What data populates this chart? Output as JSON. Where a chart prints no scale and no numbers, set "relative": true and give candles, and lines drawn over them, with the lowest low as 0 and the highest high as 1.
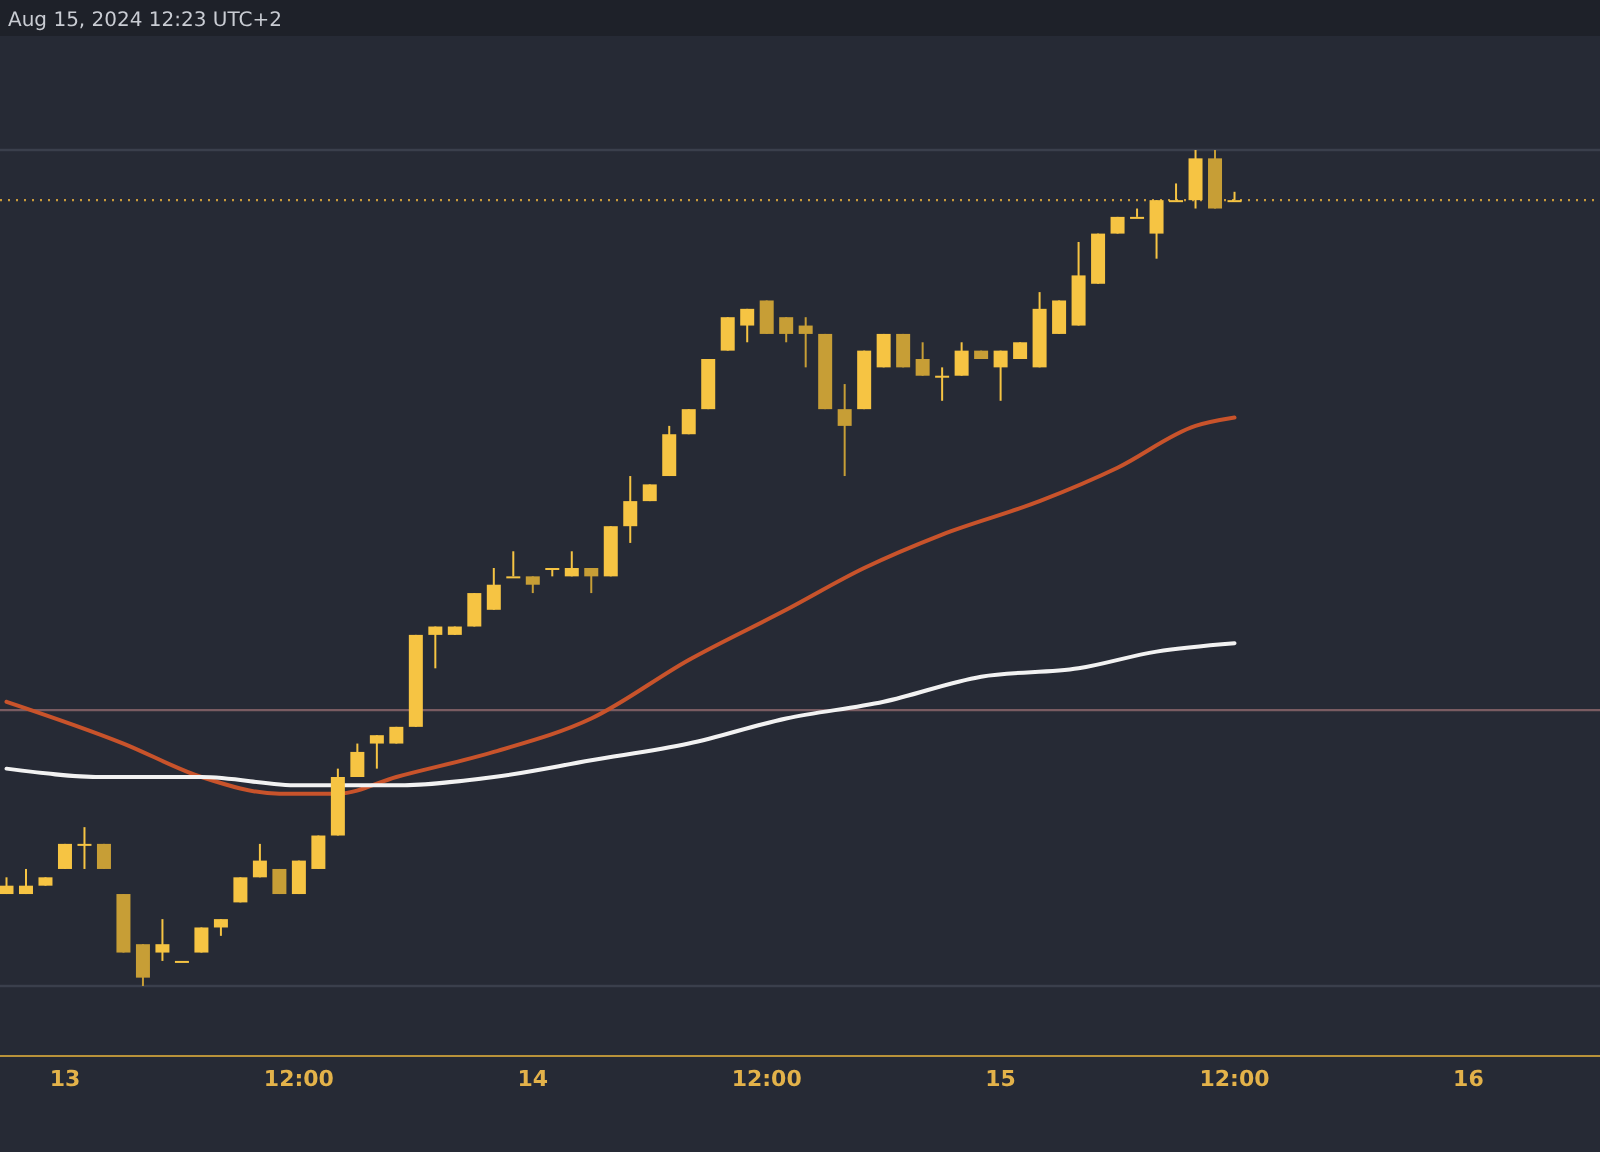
{
  "chart_data": {
    "type": "candlestick",
    "relative": true,
    "colors": [
      "#f6c443",
      "#f6c443",
      "#f6c443",
      "#f6c443",
      "#f6c443",
      "#c79e36",
      "#c79e36",
      "#c79e36",
      "#f6c443",
      "#f6c443",
      "#f6c443",
      "#f6c443",
      "#f6c443",
      "#f6c443",
      "#c79e36",
      "#f6c443",
      "#f6c443",
      "#f6c443",
      "#f6c443",
      "#f6c443",
      "#f6c443",
      "#f6c443",
      "#f6c443",
      "#f6c443",
      "#f6c443",
      "#f6c443",
      "#f6c443",
      "#c79e36",
      "#f6c443",
      "#f6c443",
      "#c79e36",
      "#f6c443",
      "#f6c443",
      "#f6c443",
      "#f6c443",
      "#f6c443",
      "#f6c443",
      "#f6c443",
      "#f6c443",
      "#c79e36",
      "#c79e36",
      "#c79e36",
      "#c79e36",
      "#c79e36",
      "#f6c443",
      "#f6c443",
      "#c79e36",
      "#c79e36",
      "#f6c443",
      "#f6c443",
      "#c79e36",
      "#f6c443",
      "#f6c443",
      "#f6c443",
      "#f6c443",
      "#f6c443",
      "#f6c443",
      "#f6c443",
      "#f6c443",
      "#f6c443",
      "#f6c443",
      "#f6c443",
      "#c79e36",
      "#f6c443"
    ],
    "annotations": [
      "Aug 15, 2024 12:23 UTC+2"
    ],
    "x": [
      "2024-08-12T21:00",
      "2024-08-12T22:00",
      "2024-08-12T23:00",
      "2024-08-13T00:00",
      "2024-08-13T01:00",
      "2024-08-13T02:00",
      "2024-08-13T03:00",
      "2024-08-13T04:00",
      "2024-08-13T05:00",
      "2024-08-13T06:00",
      "2024-08-13T07:00",
      "2024-08-13T08:00",
      "2024-08-13T09:00",
      "2024-08-13T10:00",
      "2024-08-13T11:00",
      "2024-08-13T12:00",
      "2024-08-13T13:00",
      "2024-08-13T14:00",
      "2024-08-13T15:00",
      "2024-08-13T16:00",
      "2024-08-13T17:00",
      "2024-08-13T18:00",
      "2024-08-13T19:00",
      "2024-08-13T20:00",
      "2024-08-13T21:00",
      "2024-08-13T22:00",
      "2024-08-13T23:00",
      "2024-08-14T00:00",
      "2024-08-14T01:00",
      "2024-08-14T02:00",
      "2024-08-14T03:00",
      "2024-08-14T04:00",
      "2024-08-14T05:00",
      "2024-08-14T06:00",
      "2024-08-14T07:00",
      "2024-08-14T08:00",
      "2024-08-14T09:00",
      "2024-08-14T10:00",
      "2024-08-14T11:00",
      "2024-08-14T12:00",
      "2024-08-14T13:00",
      "2024-08-14T14:00",
      "2024-08-14T15:00",
      "2024-08-14T16:00",
      "2024-08-14T17:00",
      "2024-08-14T18:00",
      "2024-08-14T19:00",
      "2024-08-14T20:00",
      "2024-08-14T21:00",
      "2024-08-14T22:00",
      "2024-08-14T23:00",
      "2024-08-15T00:00",
      "2024-08-15T01:00",
      "2024-08-15T02:00",
      "2024-08-15T03:00",
      "2024-08-15T04:00",
      "2024-08-15T05:00",
      "2024-08-15T06:00",
      "2024-08-15T07:00",
      "2024-08-15T08:00",
      "2024-08-15T09:00",
      "2024-08-15T10:00",
      "2024-08-15T11:00",
      "2024-08-15T12:00"
    ],
    "ohlc": [
      [
        0.11,
        0.13,
        0.11,
        0.12
      ],
      [
        0.11,
        0.14,
        0.11,
        0.12
      ],
      [
        0.12,
        0.13,
        0.12,
        0.13
      ],
      [
        0.14,
        0.17,
        0.14,
        0.17
      ],
      [
        0.17,
        0.19,
        0.14,
        0.17
      ],
      [
        0.17,
        0.17,
        0.14,
        0.14
      ],
      [
        0.11,
        0.11,
        0.04,
        0.04
      ],
      [
        0.05,
        0.05,
        0,
        0.01
      ],
      [
        0.04,
        0.08,
        0.03,
        0.05
      ],
      [
        0.03,
        0.03,
        0.03,
        0.03
      ],
      [
        0.04,
        0.07,
        0.04,
        0.07
      ],
      [
        0.07,
        0.08,
        0.06,
        0.08
      ],
      [
        0.1,
        0.13,
        0.1,
        0.13
      ],
      [
        0.13,
        0.17,
        0.13,
        0.15
      ],
      [
        0.14,
        0.14,
        0.11,
        0.11
      ],
      [
        0.11,
        0.15,
        0.11,
        0.15
      ],
      [
        0.14,
        0.18,
        0.14,
        0.18
      ],
      [
        0.18,
        0.26,
        0.18,
        0.25
      ],
      [
        0.25,
        0.29,
        0.25,
        0.28
      ],
      [
        0.29,
        0.3,
        0.26,
        0.3
      ],
      [
        0.29,
        0.31,
        0.29,
        0.31
      ],
      [
        0.31,
        0.42,
        0.31,
        0.42
      ],
      [
        0.42,
        0.43,
        0.38,
        0.43
      ],
      [
        0.42,
        0.43,
        0.42,
        0.43
      ],
      [
        0.43,
        0.47,
        0.43,
        0.47
      ],
      [
        0.45,
        0.5,
        0.45,
        0.48
      ],
      [
        0.49,
        0.52,
        0.49,
        0.49
      ],
      [
        0.49,
        0.49,
        0.47,
        0.48
      ],
      [
        0.5,
        0.5,
        0.49,
        0.5
      ],
      [
        0.49,
        0.52,
        0.49,
        0.5
      ],
      [
        0.5,
        0.5,
        0.47,
        0.49
      ],
      [
        0.49,
        0.55,
        0.49,
        0.55
      ],
      [
        0.55,
        0.61,
        0.53,
        0.58
      ],
      [
        0.58,
        0.6,
        0.58,
        0.6
      ],
      [
        0.61,
        0.67,
        0.61,
        0.66
      ],
      [
        0.66,
        0.69,
        0.66,
        0.69
      ],
      [
        0.69,
        0.75,
        0.69,
        0.75
      ],
      [
        0.76,
        0.8,
        0.76,
        0.8
      ],
      [
        0.79,
        0.81,
        0.77,
        0.81
      ],
      [
        0.82,
        0.82,
        0.78,
        0.78
      ],
      [
        0.8,
        0.8,
        0.77,
        0.78
      ],
      [
        0.79,
        0.8,
        0.74,
        0.78
      ],
      [
        0.78,
        0.78,
        0.69,
        0.69
      ],
      [
        0.69,
        0.72,
        0.61,
        0.67
      ],
      [
        0.69,
        0.76,
        0.69,
        0.76
      ],
      [
        0.74,
        0.78,
        0.74,
        0.78
      ],
      [
        0.78,
        0.78,
        0.74,
        0.74
      ],
      [
        0.75,
        0.77,
        0.73,
        0.73
      ],
      [
        0.73,
        0.74,
        0.7,
        0.73
      ],
      [
        0.73,
        0.77,
        0.73,
        0.76
      ],
      [
        0.76,
        0.76,
        0.75,
        0.75
      ],
      [
        0.74,
        0.76,
        0.7,
        0.76
      ],
      [
        0.75,
        0.77,
        0.75,
        0.77
      ],
      [
        0.74,
        0.83,
        0.74,
        0.81
      ],
      [
        0.78,
        0.82,
        0.78,
        0.82
      ],
      [
        0.79,
        0.89,
        0.79,
        0.85
      ],
      [
        0.84,
        0.9,
        0.84,
        0.9
      ],
      [
        0.9,
        0.92,
        0.9,
        0.92
      ],
      [
        0.92,
        0.93,
        0.92,
        0.92
      ],
      [
        0.9,
        0.94,
        0.87,
        0.94
      ],
      [
        0.94,
        0.96,
        0.94,
        0.94
      ],
      [
        0.94,
        1.0,
        0.93,
        0.99
      ],
      [
        0.99,
        1.0,
        0.93,
        0.93
      ],
      [
        0.94,
        0.95,
        0.94,
        0.94
      ]
    ],
    "series": [
      {
        "type": "line",
        "color": "#c8532b",
        "x": [
          "2024-08-12T21:00",
          "2024-08-13T03:00",
          "2024-08-13T07:00",
          "2024-08-13T11:00",
          "2024-08-13T14:00",
          "2024-08-13T17:00",
          "2024-08-13T22:00",
          "2024-08-14T03:00",
          "2024-08-14T08:00",
          "2024-08-14T13:00",
          "2024-08-14T17:00",
          "2024-08-14T21:00",
          "2024-08-15T02:00",
          "2024-08-15T06:00",
          "2024-08-15T10:00",
          "2024-08-15T12:00"
        ],
        "values": [
          0.34,
          0.29,
          0.25,
          0.23,
          0.23,
          0.25,
          0.28,
          0.32,
          0.39,
          0.45,
          0.5,
          0.54,
          0.58,
          0.62,
          0.67,
          0.68
        ]
      },
      {
        "type": "line",
        "color": "#f2f2f2",
        "x": [
          "2024-08-12T21:00",
          "2024-08-13T02:00",
          "2024-08-13T07:00",
          "2024-08-13T12:00",
          "2024-08-13T17:00",
          "2024-08-13T22:00",
          "2024-08-14T03:00",
          "2024-08-14T08:00",
          "2024-08-14T13:00",
          "2024-08-14T18:00",
          "2024-08-14T23:00",
          "2024-08-15T04:00",
          "2024-08-15T08:00",
          "2024-08-15T12:00"
        ],
        "values": [
          0.26,
          0.25,
          0.25,
          0.24,
          0.24,
          0.25,
          0.27,
          0.29,
          0.32,
          0.34,
          0.37,
          0.38,
          0.4,
          0.41
        ]
      }
    ],
    "ref_lines": [
      {
        "axis": "y",
        "value": 0.33,
        "color": "#7a5c62"
      },
      {
        "axis": "y",
        "value": 0,
        "color": "#3a3f4c"
      },
      {
        "axis": "y",
        "value": 1.0,
        "color": "#3a3f4c"
      },
      {
        "axis": "y",
        "value": 0.94,
        "color": "#c99a3a",
        "line_style": "dotted"
      }
    ],
    "xlim": [
      "2024-08-12T20:40",
      "2024-08-16T06:45"
    ],
    "xticks": [
      {
        "value": "2024-08-13T00:00",
        "label": "13"
      },
      {
        "value": "2024-08-13T12:00",
        "label": "12:00"
      },
      {
        "value": "2024-08-14T00:00",
        "label": "14"
      },
      {
        "value": "2024-08-14T12:00",
        "label": "12:00"
      },
      {
        "value": "2024-08-15T00:00",
        "label": "15"
      },
      {
        "value": "2024-08-15T12:00",
        "label": "12:00"
      },
      {
        "value": "2024-08-16T00:00",
        "label": "16"
      }
    ],
    "grid": false
  }
}
